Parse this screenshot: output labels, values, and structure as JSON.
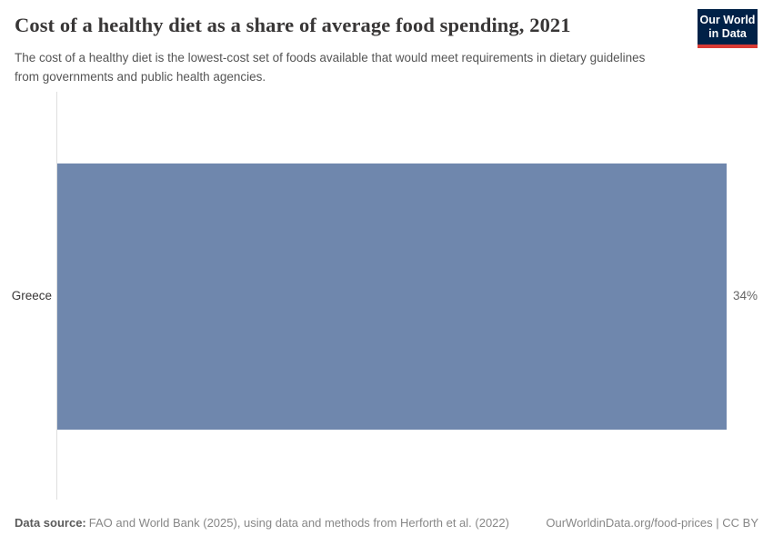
{
  "header": {
    "title": "Cost of a healthy diet as a share of average food spending, 2021",
    "subtitle": "The cost of a healthy diet is the lowest-cost set of foods available that would meet requirements in dietary guidelines from governments and public health agencies.",
    "logo": {
      "line1": "Our World",
      "line2": "in Data"
    }
  },
  "chart_data": {
    "type": "bar",
    "orientation": "horizontal",
    "title": "Cost of a healthy diet as a share of average food spending, 2021",
    "categories": [
      "Greece"
    ],
    "values": [
      34
    ],
    "value_labels": [
      "34%"
    ],
    "unit": "%",
    "year": "2021",
    "xlim": [
      0,
      34
    ],
    "xlabel": "",
    "ylabel": "",
    "grid": false,
    "legend": false
  },
  "footer": {
    "data_source_label": "Data source:",
    "data_source_text": "FAO and World Bank (2025), using data and methods from Herforth et al. (2022)",
    "url": "OurWorldinData.org/food-prices",
    "separator": " | ",
    "license": "CC BY"
  },
  "colors": {
    "bar": "#6f87ad",
    "logo_background": "#002147",
    "logo_accent": "#d93a34",
    "title_text": "#383636",
    "subtitle_text": "#555555",
    "category_text": "#383636",
    "value_text": "#666666",
    "axis_line": "#dedede"
  }
}
